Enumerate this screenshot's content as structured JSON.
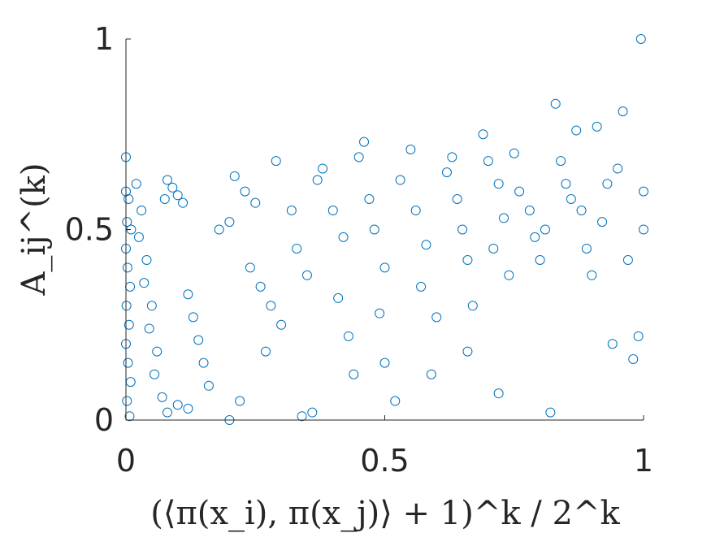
{
  "chart_data": {
    "type": "scatter",
    "title": "",
    "xlabel": "(⟨π(x_i), π(x_j)⟩ + 1)^k / 2^k",
    "ylabel": "A_ij^(k)",
    "xlim": [
      0,
      1
    ],
    "ylim": [
      0,
      1
    ],
    "xticks": [
      0,
      0.5,
      1
    ],
    "yticks": [
      0,
      0.5,
      1
    ],
    "xtick_labels": [
      "0",
      "0.5",
      "1"
    ],
    "ytick_labels": [
      "0",
      "0.5",
      "1"
    ],
    "grid": false,
    "marker": "open circle",
    "color": "#0072BD",
    "series": [
      {
        "name": "",
        "points": [
          [
            0.0,
            0.69
          ],
          [
            0.0,
            0.6
          ],
          [
            0.005,
            0.58
          ],
          [
            0.002,
            0.52
          ],
          [
            0.01,
            0.5
          ],
          [
            0.0,
            0.45
          ],
          [
            0.003,
            0.4
          ],
          [
            0.008,
            0.35
          ],
          [
            0.001,
            0.3
          ],
          [
            0.006,
            0.25
          ],
          [
            0.0,
            0.2
          ],
          [
            0.004,
            0.15
          ],
          [
            0.009,
            0.1
          ],
          [
            0.002,
            0.05
          ],
          [
            0.007,
            0.01
          ],
          [
            0.02,
            0.62
          ],
          [
            0.03,
            0.55
          ],
          [
            0.025,
            0.48
          ],
          [
            0.04,
            0.42
          ],
          [
            0.035,
            0.36
          ],
          [
            0.05,
            0.3
          ],
          [
            0.045,
            0.24
          ],
          [
            0.06,
            0.18
          ],
          [
            0.055,
            0.12
          ],
          [
            0.07,
            0.06
          ],
          [
            0.075,
            0.58
          ],
          [
            0.08,
            0.63
          ],
          [
            0.09,
            0.61
          ],
          [
            0.1,
            0.59
          ],
          [
            0.11,
            0.57
          ],
          [
            0.12,
            0.33
          ],
          [
            0.13,
            0.27
          ],
          [
            0.14,
            0.21
          ],
          [
            0.15,
            0.15
          ],
          [
            0.16,
            0.09
          ],
          [
            0.08,
            0.02
          ],
          [
            0.1,
            0.04
          ],
          [
            0.12,
            0.03
          ],
          [
            0.2,
            0.0
          ],
          [
            0.22,
            0.05
          ],
          [
            0.18,
            0.5
          ],
          [
            0.2,
            0.52
          ],
          [
            0.21,
            0.64
          ],
          [
            0.23,
            0.6
          ],
          [
            0.25,
            0.57
          ],
          [
            0.24,
            0.4
          ],
          [
            0.26,
            0.35
          ],
          [
            0.28,
            0.3
          ],
          [
            0.3,
            0.25
          ],
          [
            0.27,
            0.18
          ],
          [
            0.29,
            0.68
          ],
          [
            0.32,
            0.55
          ],
          [
            0.33,
            0.45
          ],
          [
            0.35,
            0.38
          ],
          [
            0.34,
            0.01
          ],
          [
            0.36,
            0.02
          ],
          [
            0.37,
            0.63
          ],
          [
            0.38,
            0.66
          ],
          [
            0.4,
            0.55
          ],
          [
            0.42,
            0.48
          ],
          [
            0.41,
            0.32
          ],
          [
            0.43,
            0.22
          ],
          [
            0.44,
            0.12
          ],
          [
            0.45,
            0.69
          ],
          [
            0.46,
            0.73
          ],
          [
            0.47,
            0.58
          ],
          [
            0.48,
            0.5
          ],
          [
            0.5,
            0.4
          ],
          [
            0.49,
            0.28
          ],
          [
            0.5,
            0.15
          ],
          [
            0.52,
            0.05
          ],
          [
            0.53,
            0.63
          ],
          [
            0.55,
            0.71
          ],
          [
            0.56,
            0.55
          ],
          [
            0.58,
            0.46
          ],
          [
            0.57,
            0.35
          ],
          [
            0.6,
            0.27
          ],
          [
            0.59,
            0.12
          ],
          [
            0.62,
            0.65
          ],
          [
            0.63,
            0.69
          ],
          [
            0.64,
            0.58
          ],
          [
            0.65,
            0.5
          ],
          [
            0.66,
            0.42
          ],
          [
            0.67,
            0.3
          ],
          [
            0.66,
            0.18
          ],
          [
            0.69,
            0.75
          ],
          [
            0.7,
            0.68
          ],
          [
            0.72,
            0.62
          ],
          [
            0.73,
            0.53
          ],
          [
            0.71,
            0.45
          ],
          [
            0.74,
            0.38
          ],
          [
            0.72,
            0.07
          ],
          [
            0.75,
            0.7
          ],
          [
            0.76,
            0.6
          ],
          [
            0.78,
            0.55
          ],
          [
            0.79,
            0.48
          ],
          [
            0.8,
            0.42
          ],
          [
            0.81,
            0.5
          ],
          [
            0.82,
            0.02
          ],
          [
            0.83,
            0.83
          ],
          [
            0.84,
            0.68
          ],
          [
            0.85,
            0.62
          ],
          [
            0.86,
            0.58
          ],
          [
            0.87,
            0.76
          ],
          [
            0.88,
            0.55
          ],
          [
            0.89,
            0.45
          ],
          [
            0.9,
            0.38
          ],
          [
            0.91,
            0.77
          ],
          [
            0.92,
            0.52
          ],
          [
            0.93,
            0.62
          ],
          [
            0.94,
            0.2
          ],
          [
            0.95,
            0.66
          ],
          [
            0.96,
            0.81
          ],
          [
            0.97,
            0.42
          ],
          [
            0.98,
            0.16
          ],
          [
            0.99,
            0.22
          ],
          [
            1.0,
            0.5
          ],
          [
            1.0,
            0.6
          ],
          [
            0.995,
            1.0
          ]
        ]
      }
    ]
  }
}
